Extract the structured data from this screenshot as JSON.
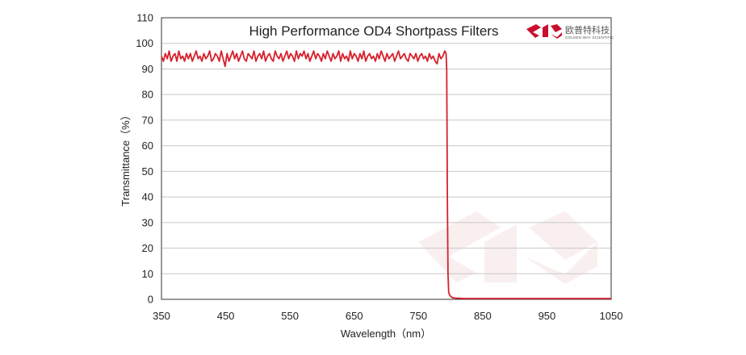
{
  "chart_data": {
    "type": "line",
    "title": "High Performance OD4 Shortpass  Filters",
    "xlabel": "Wavelength（nm）",
    "ylabel": "Transmittance（%）",
    "xlim": [
      350,
      1050
    ],
    "ylim": [
      0,
      110
    ],
    "xticks": [
      "350",
      "450",
      "550",
      "650",
      "750",
      "850",
      "950",
      "1050"
    ],
    "yticks": [
      "0",
      "10",
      "20",
      "30",
      "40",
      "50",
      "60",
      "70",
      "80",
      "90",
      "100",
      "110"
    ],
    "grid": true,
    "line_color": "#d7202c",
    "series": [
      {
        "x": [
          350,
          353,
          356,
          359,
          362,
          365,
          368,
          371,
          374,
          377,
          380,
          383,
          386,
          389,
          392,
          395,
          398,
          401,
          404,
          407,
          410,
          413,
          416,
          419,
          422,
          425,
          428,
          431,
          434,
          437,
          440,
          443,
          446,
          449,
          452,
          455,
          458,
          461,
          464,
          467,
          470,
          473,
          476,
          479,
          482,
          485,
          488,
          491,
          494,
          497,
          500,
          503,
          506,
          509,
          512,
          515,
          518,
          521,
          524,
          527,
          530,
          533,
          536,
          539,
          542,
          545,
          548,
          551,
          554,
          557,
          560,
          563,
          566,
          569,
          572,
          575,
          578,
          581,
          584,
          587,
          590,
          593,
          596,
          599,
          602,
          605,
          608,
          611,
          614,
          617,
          620,
          623,
          626,
          629,
          632,
          635,
          638,
          641,
          644,
          647,
          650,
          653,
          656,
          659,
          662,
          665,
          668,
          671,
          674,
          677,
          680,
          683,
          686,
          689,
          692,
          695,
          698,
          701,
          704,
          707,
          710,
          713,
          716,
          719,
          722,
          725,
          728,
          731,
          734,
          737,
          740,
          743,
          746,
          749,
          752,
          755,
          758,
          761,
          764,
          767,
          770,
          773,
          776,
          779,
          782,
          785,
          788,
          791,
          793,
          794,
          795,
          796,
          797,
          798,
          799,
          800,
          801,
          802,
          804,
          807,
          812,
          820,
          850,
          900,
          950,
          1000,
          1050
        ],
        "y": [
          95,
          93,
          96,
          94,
          97,
          93,
          95,
          96,
          93,
          97,
          94,
          95,
          93,
          96,
          94,
          96,
          93,
          95,
          97,
          94,
          95,
          93,
          96,
          94,
          95,
          97,
          93,
          94,
          96,
          95,
          93,
          97,
          94,
          91,
          96,
          93,
          95,
          97,
          94,
          96,
          93,
          95,
          97,
          94,
          93,
          96,
          95,
          94,
          97,
          93,
          95,
          96,
          94,
          97,
          93,
          95,
          96,
          94,
          93,
          97,
          95,
          94,
          96,
          93,
          95,
          97,
          94,
          96,
          95,
          93,
          97,
          94,
          96,
          95,
          97,
          94,
          96,
          93,
          95,
          97,
          94,
          96,
          95,
          93,
          96,
          94,
          97,
          95,
          93,
          96,
          94,
          95,
          97,
          93,
          96,
          94,
          95,
          93,
          97,
          94,
          96,
          95,
          93,
          96,
          94,
          97,
          93,
          95,
          96,
          94,
          95,
          93,
          96,
          94,
          97,
          95,
          93,
          96,
          94,
          95,
          96,
          93,
          95,
          97,
          94,
          95,
          96,
          94,
          93,
          96,
          95,
          94,
          96,
          93,
          95,
          96,
          94,
          95,
          93,
          96,
          94,
          95,
          93,
          92,
          96,
          94,
          95,
          97,
          96,
          90,
          40,
          10,
          3,
          2,
          1.5,
          1.2,
          1,
          0.8,
          0.6,
          0.5,
          0.4,
          0.3,
          0.3,
          0.3,
          0.3,
          0.3,
          0.3
        ]
      }
    ]
  },
  "logo": {
    "name_cn": "欧普特科技",
    "name_en": "GOLDEN WAY SCIENTIFIC",
    "color": "#c8102e"
  }
}
